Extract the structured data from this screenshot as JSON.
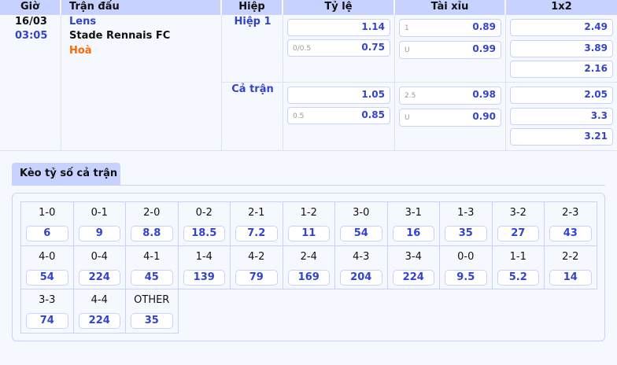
{
  "headers": [
    "Giờ",
    "Trận đấu",
    "Hiệp",
    "Tỷ lệ",
    "Tài xỉu",
    "1x2"
  ],
  "match": {
    "date": "16/03",
    "time": "03:05",
    "home": "Lens",
    "away": "Stade Rennais FC",
    "draw": "Hoà"
  },
  "periods": [
    {
      "label": "Hiệp 1",
      "handicap": [
        {
          "line": "",
          "odds": "1.14"
        },
        {
          "line": "0/0.5",
          "odds": "0.75"
        }
      ],
      "overunder": [
        {
          "line": "1",
          "odds": "0.89"
        },
        {
          "line": "U",
          "odds": "0.99"
        }
      ],
      "x12": [
        "2.49",
        "3.89",
        "2.16"
      ]
    },
    {
      "label": "Cả trận",
      "handicap": [
        {
          "line": "",
          "odds": "1.05"
        },
        {
          "line": "0.5",
          "odds": "0.85"
        }
      ],
      "overunder": [
        {
          "line": "2.5",
          "odds": "0.98"
        },
        {
          "line": "U",
          "odds": "0.90"
        }
      ],
      "x12": [
        "2.05",
        "3.3",
        "3.21"
      ]
    }
  ],
  "correct_score": {
    "tab": "Kèo tỷ số cả trận",
    "items": [
      {
        "score": "1-0",
        "odds": "6"
      },
      {
        "score": "0-1",
        "odds": "9"
      },
      {
        "score": "2-0",
        "odds": "8.8"
      },
      {
        "score": "0-2",
        "odds": "18.5"
      },
      {
        "score": "2-1",
        "odds": "7.2"
      },
      {
        "score": "1-2",
        "odds": "11"
      },
      {
        "score": "3-0",
        "odds": "54"
      },
      {
        "score": "3-1",
        "odds": "16"
      },
      {
        "score": "1-3",
        "odds": "35"
      },
      {
        "score": "3-2",
        "odds": "27"
      },
      {
        "score": "2-3",
        "odds": "43"
      },
      {
        "score": "4-0",
        "odds": "54"
      },
      {
        "score": "0-4",
        "odds": "224"
      },
      {
        "score": "4-1",
        "odds": "45"
      },
      {
        "score": "1-4",
        "odds": "139"
      },
      {
        "score": "4-2",
        "odds": "79"
      },
      {
        "score": "2-4",
        "odds": "169"
      },
      {
        "score": "4-3",
        "odds": "204"
      },
      {
        "score": "3-4",
        "odds": "224"
      },
      {
        "score": "0-0",
        "odds": "9.5"
      },
      {
        "score": "1-1",
        "odds": "5.2"
      },
      {
        "score": "2-2",
        "odds": "14"
      },
      {
        "score": "3-3",
        "odds": "74"
      },
      {
        "score": "4-4",
        "odds": "224"
      },
      {
        "score": "OTHER",
        "odds": "35"
      }
    ]
  },
  "colors": {
    "header": "#c7d3fe",
    "accent": "#3344cc",
    "draw": "#ff6a00"
  }
}
